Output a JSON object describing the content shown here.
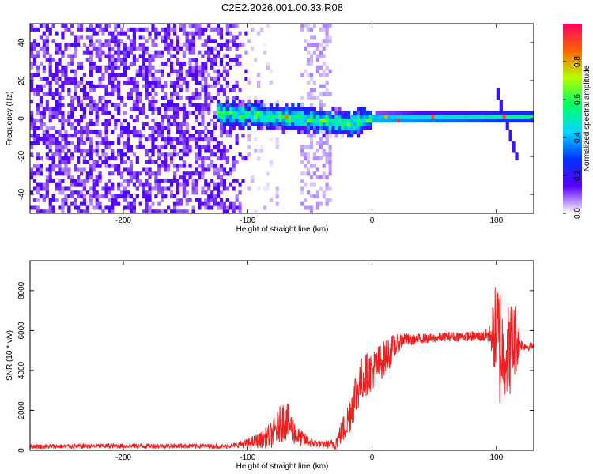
{
  "title": "C2E2.2026.001.00.33.R08",
  "chart_data": [
    {
      "type": "heatmap",
      "title": "C2E2.2026.001.00.33.R08",
      "xlabel": "Height of straight line (km)",
      "ylabel": "Frequency (Hz)",
      "xlim": [
        -275,
        130
      ],
      "ylim": [
        -50,
        50
      ],
      "xticks": [
        "-200",
        "-100",
        "0",
        "100"
      ],
      "yticks": [
        "-40",
        "-20",
        "0",
        "20",
        "40"
      ],
      "colorbar": {
        "label": "Normalized spectral amplitude",
        "range": [
          0.0,
          1.0
        ],
        "ticks": [
          "0.0",
          "0.2",
          "0.4",
          "0.6",
          "0.8"
        ],
        "colors": [
          "#ffffff",
          "#5a00ff",
          "#0032ff",
          "#00d7ff",
          "#00ff64",
          "#b4ff00",
          "#ff6400",
          "#ff0064"
        ]
      },
      "features": [
        {
          "name": "broadband noise",
          "x_range": [
            -275,
            -100
          ],
          "freq_range": [
            -50,
            50
          ],
          "amplitude": 0.15
        },
        {
          "name": "noise band",
          "x_range": [
            -58,
            -35
          ],
          "freq_range": [
            -50,
            50
          ],
          "amplitude": 0.05
        },
        {
          "name": "carrier",
          "x_range": [
            -125,
            130
          ],
          "freq_hz": [
            [
              -125,
              3
            ],
            [
              -60,
              0
            ],
            [
              -20,
              -3
            ],
            [
              0,
              0
            ],
            [
              130,
              1
            ]
          ],
          "amplitude": 0.45
        },
        {
          "name": "sweep",
          "x_range": [
            98,
            115
          ],
          "freq_hz": [
            [
              98,
              17
            ],
            [
              115,
              -20
            ]
          ],
          "amplitude": 0.2
        }
      ]
    },
    {
      "type": "line",
      "xlabel": "Height of straight line (km)",
      "ylabel": "SNR (10 * v/v)",
      "xlim": [
        -275,
        130
      ],
      "ylim": [
        0,
        9500
      ],
      "xticks": [
        "-200",
        "-100",
        "0",
        "100"
      ],
      "yticks": [
        "0",
        "2000",
        "4000",
        "6000",
        "8000"
      ],
      "color": "#ee2020",
      "series": [
        {
          "x": [
            -275,
            -250,
            -200,
            -150,
            -120,
            -110,
            -100,
            -90,
            -80,
            -70,
            -60,
            -50,
            -40,
            -30,
            -20,
            -15,
            -10,
            -5,
            0,
            5,
            10,
            15,
            20,
            25,
            30,
            40,
            50,
            60,
            70,
            80,
            90,
            95,
            100,
            103,
            106,
            110,
            115,
            120,
            125,
            130
          ],
          "y": [
            200,
            200,
            220,
            220,
            200,
            250,
            350,
            500,
            800,
            1600,
            700,
            400,
            300,
            300,
            1400,
            2500,
            3400,
            3800,
            4000,
            4300,
            4600,
            5000,
            5300,
            5600,
            5500,
            5600,
            5600,
            5700,
            5700,
            5700,
            5700,
            5800,
            6000,
            5200,
            4800,
            5000,
            5600,
            5300,
            5200,
            5200
          ],
          "noise": [
            120,
            120,
            120,
            120,
            120,
            120,
            250,
            400,
            700,
            1100,
            500,
            250,
            150,
            300,
            900,
            1200,
            1200,
            1100,
            1000,
            1000,
            900,
            800,
            500,
            400,
            300,
            250,
            250,
            250,
            250,
            250,
            300,
            500,
            2800,
            3300,
            2000,
            2500,
            2000,
            300,
            200,
            200
          ]
        }
      ]
    }
  ]
}
